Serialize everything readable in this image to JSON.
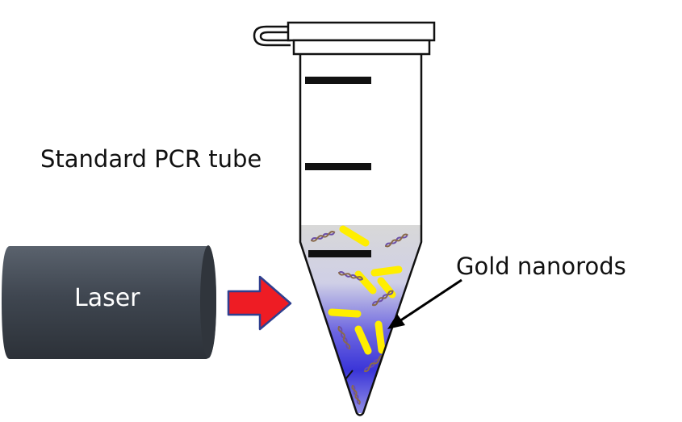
{
  "labels": {
    "tube": "Standard PCR tube",
    "nanorods": "Gold nanorods",
    "laser": "Laser"
  },
  "colors": {
    "laser_body": "#3f4650",
    "arrow_fill": "#ee1c24",
    "arrow_stroke": "#2f3f8f",
    "liquid_gray": "#d4d4d4",
    "liquid_blue": "#3a35d8",
    "nanorod": "#ffee00",
    "dna_strand_a": "#6b4fa8",
    "dna_strand_b": "#8a6a4a"
  },
  "icons": [
    "laser-device",
    "input-arrow",
    "pcr-tube",
    "gold-nanorod",
    "dna-helix"
  ]
}
